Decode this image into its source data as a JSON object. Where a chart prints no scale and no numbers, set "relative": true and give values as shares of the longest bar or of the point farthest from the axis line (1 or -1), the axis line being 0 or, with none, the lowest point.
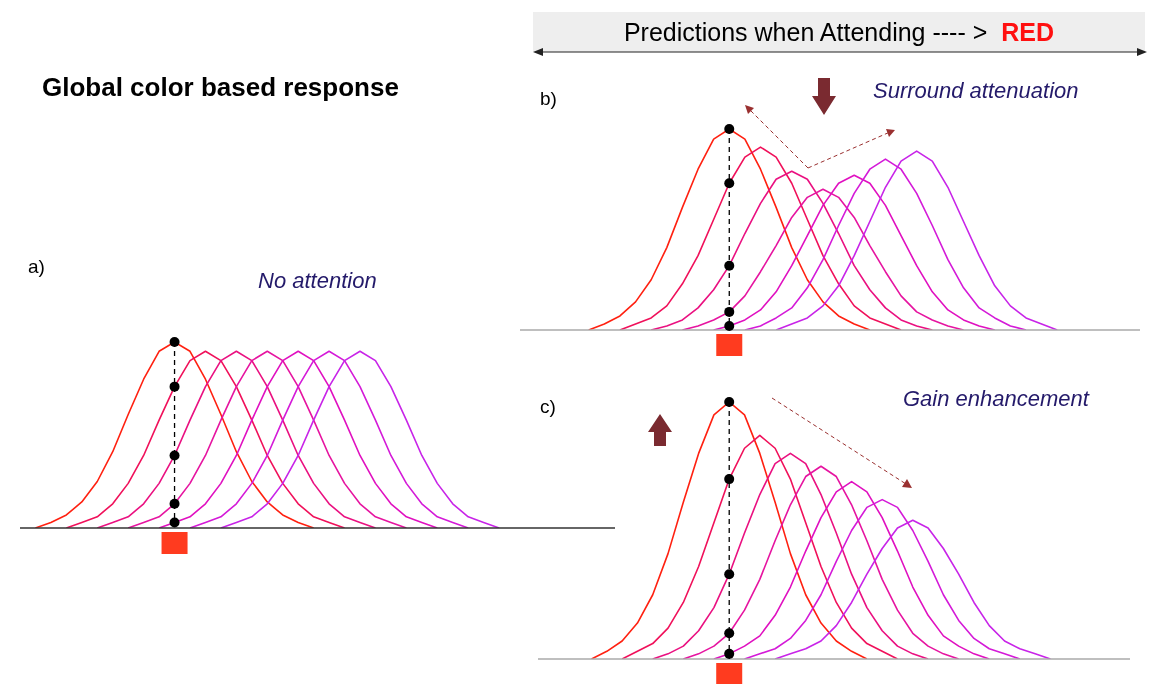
{
  "chart_data": [
    {
      "type": "line",
      "title": "Global color based response",
      "annotations": [
        "a)",
        "No attention"
      ],
      "relative": true,
      "categories": [
        null,
        null,
        null,
        null,
        null,
        null,
        null,
        null,
        null,
        null,
        null,
        null,
        null,
        null,
        null,
        null,
        null,
        null,
        null,
        null,
        null,
        null,
        null,
        null,
        null,
        null,
        null,
        null,
        null,
        null,
        null
      ],
      "line_style": "solid",
      "marker": "none",
      "series": [
        {
          "color": "#ff2010",
          "values": [
            0,
            0.03,
            0.07,
            0.14,
            0.25,
            0.41,
            0.61,
            0.8,
            0.95,
            1,
            0.95,
            0.8,
            0.61,
            0.41,
            0.25,
            0.14,
            0.07,
            0.03,
            0,
            null,
            null,
            null,
            null,
            null,
            null,
            null,
            null,
            null,
            null,
            null,
            null
          ]
        },
        {
          "color": "#f0105a",
          "values": [
            null,
            null,
            0,
            0.03,
            0.06,
            0.13,
            0.24,
            0.39,
            0.58,
            0.76,
            0.9,
            0.95,
            0.9,
            0.76,
            0.58,
            0.39,
            0.24,
            0.13,
            0.06,
            0.03,
            0,
            null,
            null,
            null,
            null,
            null,
            null,
            null,
            null,
            null,
            null
          ]
        },
        {
          "color": "#ea1080",
          "values": [
            null,
            null,
            null,
            null,
            0,
            0.03,
            0.06,
            0.13,
            0.24,
            0.39,
            0.58,
            0.76,
            0.9,
            0.95,
            0.9,
            0.76,
            0.58,
            0.39,
            0.24,
            0.13,
            0.06,
            0.03,
            0,
            null,
            null,
            null,
            null,
            null,
            null,
            null,
            null
          ]
        },
        {
          "color": "#e614a0",
          "values": [
            null,
            null,
            null,
            null,
            null,
            null,
            0,
            0.03,
            0.06,
            0.13,
            0.24,
            0.39,
            0.58,
            0.76,
            0.9,
            0.95,
            0.9,
            0.76,
            0.58,
            0.39,
            0.24,
            0.13,
            0.06,
            0.03,
            0,
            null,
            null,
            null,
            null,
            null,
            null
          ]
        },
        {
          "color": "#e010c0",
          "values": [
            null,
            null,
            null,
            null,
            null,
            null,
            null,
            null,
            0,
            0.03,
            0.06,
            0.13,
            0.24,
            0.39,
            0.58,
            0.76,
            0.9,
            0.95,
            0.9,
            0.76,
            0.58,
            0.39,
            0.24,
            0.13,
            0.06,
            0.03,
            0,
            null,
            null,
            null,
            null
          ]
        },
        {
          "color": "#d41ad8",
          "values": [
            null,
            null,
            null,
            null,
            null,
            null,
            null,
            null,
            null,
            null,
            0,
            0.03,
            0.06,
            0.13,
            0.24,
            0.39,
            0.58,
            0.76,
            0.9,
            0.95,
            0.9,
            0.76,
            0.58,
            0.39,
            0.24,
            0.13,
            0.06,
            0.03,
            0,
            null,
            null
          ]
        },
        {
          "color": "#c824e8",
          "values": [
            null,
            null,
            null,
            null,
            null,
            null,
            null,
            null,
            null,
            null,
            null,
            null,
            0,
            0.03,
            0.06,
            0.13,
            0.24,
            0.39,
            0.58,
            0.76,
            0.9,
            0.95,
            0.9,
            0.76,
            0.58,
            0.39,
            0.24,
            0.13,
            0.06,
            0.03,
            0
          ]
        }
      ]
    },
    {
      "type": "line",
      "title": "Predictions when  Attending ---- >",
      "annotations": [
        "RED",
        "b)",
        "Surround attenuation"
      ],
      "relative": true,
      "categories": [
        null,
        null,
        null,
        null,
        null,
        null,
        null,
        null,
        null,
        null,
        null,
        null,
        null,
        null,
        null,
        null,
        null,
        null,
        null,
        null,
        null,
        null,
        null,
        null,
        null,
        null,
        null,
        null,
        null,
        null,
        null
      ],
      "line_style": "solid",
      "marker": "none",
      "series": [
        {
          "color": "#ff2010",
          "values": [
            0,
            0.03,
            0.07,
            0.14,
            0.25,
            0.41,
            0.61,
            0.8,
            0.95,
            1,
            0.95,
            0.8,
            0.61,
            0.41,
            0.25,
            0.14,
            0.07,
            0.03,
            0,
            null,
            null,
            null,
            null,
            null,
            null,
            null,
            null,
            null,
            null,
            null,
            null
          ]
        },
        {
          "color": "#f0105a",
          "values": [
            null,
            null,
            0,
            0.03,
            0.06,
            0.12,
            0.23,
            0.37,
            0.55,
            0.73,
            0.86,
            0.91,
            0.86,
            0.73,
            0.55,
            0.37,
            0.23,
            0.12,
            0.06,
            0.03,
            0,
            null,
            null,
            null,
            null,
            null,
            null,
            null,
            null,
            null,
            null
          ]
        },
        {
          "color": "#ea1080",
          "values": [
            null,
            null,
            null,
            null,
            0,
            0.02,
            0.05,
            0.11,
            0.2,
            0.32,
            0.48,
            0.63,
            0.75,
            0.79,
            0.75,
            0.63,
            0.48,
            0.32,
            0.2,
            0.11,
            0.05,
            0.02,
            0,
            null,
            null,
            null,
            null,
            null,
            null,
            null,
            null
          ]
        },
        {
          "color": "#e614a0",
          "values": [
            null,
            null,
            null,
            null,
            null,
            null,
            0,
            0.02,
            0.05,
            0.09,
            0.17,
            0.29,
            0.42,
            0.56,
            0.66,
            0.7,
            0.66,
            0.56,
            0.42,
            0.29,
            0.17,
            0.09,
            0.05,
            0.02,
            0,
            null,
            null,
            null,
            null,
            null,
            null
          ]
        },
        {
          "color": "#e010c0",
          "values": [
            null,
            null,
            null,
            null,
            null,
            null,
            null,
            null,
            0,
            0.02,
            0.05,
            0.1,
            0.19,
            0.32,
            0.47,
            0.62,
            0.73,
            0.77,
            0.73,
            0.62,
            0.47,
            0.32,
            0.19,
            0.1,
            0.05,
            0.02,
            0,
            null,
            null,
            null,
            null
          ]
        },
        {
          "color": "#d41ad8",
          "values": [
            null,
            null,
            null,
            null,
            null,
            null,
            null,
            null,
            null,
            null,
            0,
            0.02,
            0.06,
            0.11,
            0.21,
            0.35,
            0.52,
            0.68,
            0.8,
            0.85,
            0.8,
            0.68,
            0.52,
            0.35,
            0.21,
            0.11,
            0.06,
            0.02,
            0,
            null,
            null
          ]
        },
        {
          "color": "#c824e8",
          "values": [
            null,
            null,
            null,
            null,
            null,
            null,
            null,
            null,
            null,
            null,
            null,
            null,
            0,
            0.03,
            0.06,
            0.12,
            0.22,
            0.37,
            0.54,
            0.71,
            0.84,
            0.89,
            0.84,
            0.71,
            0.54,
            0.37,
            0.22,
            0.12,
            0.06,
            0.03,
            0
          ]
        }
      ]
    },
    {
      "type": "line",
      "annotations": [
        "c)",
        "Gain enhancement"
      ],
      "relative": true,
      "categories": [
        null,
        null,
        null,
        null,
        null,
        null,
        null,
        null,
        null,
        null,
        null,
        null,
        null,
        null,
        null,
        null,
        null,
        null,
        null,
        null,
        null,
        null,
        null,
        null,
        null,
        null,
        null,
        null,
        null,
        null,
        null
      ],
      "line_style": "solid",
      "marker": "none",
      "series": [
        {
          "color": "#ff2010",
          "values": [
            0,
            0.03,
            0.07,
            0.14,
            0.25,
            0.41,
            0.61,
            0.8,
            0.95,
            1,
            0.95,
            0.8,
            0.61,
            0.41,
            0.25,
            0.14,
            0.07,
            0.03,
            0,
            null,
            null,
            null,
            null,
            null,
            null,
            null,
            null,
            null,
            null,
            null,
            null
          ]
        },
        {
          "color": "#f0105a",
          "values": [
            null,
            null,
            0,
            0.03,
            0.06,
            0.12,
            0.22,
            0.36,
            0.53,
            0.7,
            0.82,
            0.87,
            0.82,
            0.7,
            0.53,
            0.36,
            0.22,
            0.12,
            0.06,
            0.03,
            0,
            null,
            null,
            null,
            null,
            null,
            null,
            null,
            null,
            null,
            null
          ]
        },
        {
          "color": "#ea1080",
          "values": [
            null,
            null,
            null,
            null,
            0,
            0.02,
            0.05,
            0.11,
            0.2,
            0.33,
            0.49,
            0.64,
            0.76,
            0.8,
            0.76,
            0.64,
            0.49,
            0.33,
            0.2,
            0.11,
            0.05,
            0.02,
            0,
            null,
            null,
            null,
            null,
            null,
            null,
            null,
            null
          ]
        },
        {
          "color": "#e614a0",
          "values": [
            null,
            null,
            null,
            null,
            null,
            null,
            0,
            0.02,
            0.05,
            0.1,
            0.19,
            0.31,
            0.46,
            0.6,
            0.71,
            0.75,
            0.71,
            0.6,
            0.46,
            0.31,
            0.19,
            0.1,
            0.05,
            0.02,
            0,
            null,
            null,
            null,
            null,
            null,
            null
          ]
        },
        {
          "color": "#e010c0",
          "values": [
            null,
            null,
            null,
            null,
            null,
            null,
            null,
            null,
            0,
            0.02,
            0.05,
            0.09,
            0.17,
            0.28,
            0.42,
            0.55,
            0.65,
            0.69,
            0.65,
            0.55,
            0.42,
            0.28,
            0.17,
            0.09,
            0.05,
            0.02,
            0,
            null,
            null,
            null,
            null
          ]
        },
        {
          "color": "#d41ad8",
          "values": [
            null,
            null,
            null,
            null,
            null,
            null,
            null,
            null,
            null,
            null,
            0,
            0.02,
            0.04,
            0.08,
            0.15,
            0.25,
            0.38,
            0.5,
            0.59,
            0.62,
            0.59,
            0.5,
            0.38,
            0.25,
            0.15,
            0.08,
            0.04,
            0.02,
            0,
            null,
            null
          ]
        },
        {
          "color": "#c824e8",
          "values": [
            null,
            null,
            null,
            null,
            null,
            null,
            null,
            null,
            null,
            null,
            null,
            null,
            0,
            0.02,
            0.04,
            0.07,
            0.13,
            0.22,
            0.33,
            0.43,
            0.51,
            0.54,
            0.51,
            0.43,
            0.33,
            0.22,
            0.13,
            0.07,
            0.04,
            0.02,
            0
          ]
        }
      ]
    }
  ]
}
